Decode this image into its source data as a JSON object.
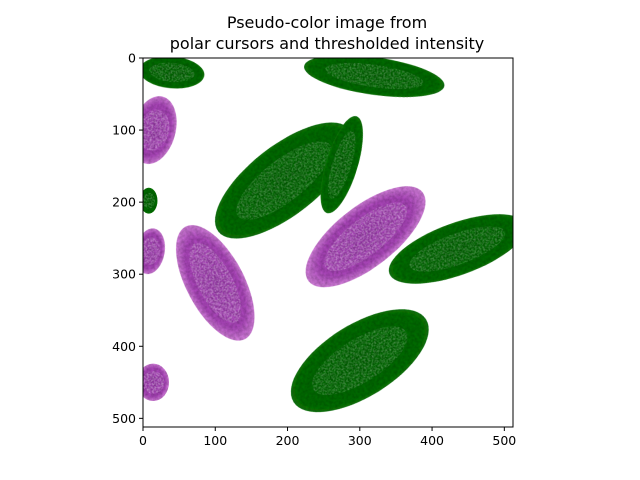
{
  "figure": {
    "title_line1": "Pseudo-color image from",
    "title_line2": "polar cursors and thresholded intensity",
    "background": "#ffffff"
  },
  "axes": {
    "x_ticks": [
      0,
      100,
      200,
      300,
      400,
      500
    ],
    "y_ticks": [
      0,
      100,
      200,
      300,
      400,
      500
    ],
    "x_range": [
      0,
      512
    ],
    "y_range": [
      0,
      512
    ],
    "y_inverted": true
  },
  "colors": {
    "green_cell": "#0a6a0a",
    "green_cell_dark": "#064d06",
    "green_cell_bright": "#1f8a1a",
    "magenta_cell": "#b44cc4",
    "magenta_cell_light": "#e08ae8",
    "magenta_cell_dark": "#7a2a86"
  },
  "cells": [
    {
      "label": "green",
      "cx": 40,
      "cy": 20,
      "rx": 45,
      "ry": 22,
      "angle": 5
    },
    {
      "label": "green",
      "cx": 320,
      "cy": 25,
      "rx": 98,
      "ry": 26,
      "angle": 8
    },
    {
      "label": "green",
      "cx": 195,
      "cy": 170,
      "rx": 115,
      "ry": 48,
      "angle": -38
    },
    {
      "label": "green",
      "cx": 275,
      "cy": 148,
      "rx": 70,
      "ry": 22,
      "angle": -73
    },
    {
      "label": "green",
      "cx": 435,
      "cy": 265,
      "rx": 100,
      "ry": 36,
      "angle": -20
    },
    {
      "label": "green",
      "cx": 300,
      "cy": 420,
      "rx": 108,
      "ry": 50,
      "angle": -32
    },
    {
      "label": "green",
      "cx": 8,
      "cy": 198,
      "rx": 12,
      "ry": 18,
      "angle": 0
    },
    {
      "label": "magenta",
      "cx": 15,
      "cy": 100,
      "rx": 30,
      "ry": 48,
      "angle": 15
    },
    {
      "label": "magenta",
      "cx": 308,
      "cy": 248,
      "rx": 100,
      "ry": 42,
      "angle": -38
    },
    {
      "label": "magenta",
      "cx": 100,
      "cy": 312,
      "rx": 88,
      "ry": 40,
      "angle": 62
    },
    {
      "label": "magenta",
      "cx": 10,
      "cy": 268,
      "rx": 20,
      "ry": 32,
      "angle": 10
    },
    {
      "label": "magenta",
      "cx": 14,
      "cy": 450,
      "rx": 22,
      "ry": 26,
      "angle": 0
    }
  ]
}
